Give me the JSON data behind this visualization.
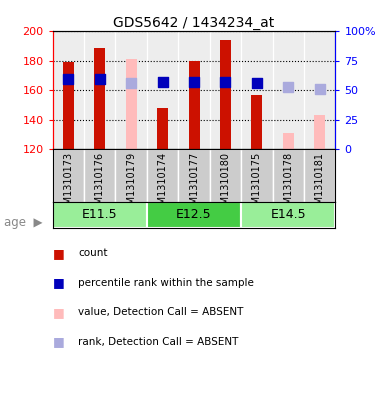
{
  "title": "GDS5642 / 1434234_at",
  "samples": [
    "GSM1310173",
    "GSM1310176",
    "GSM1310179",
    "GSM1310174",
    "GSM1310177",
    "GSM1310180",
    "GSM1310175",
    "GSM1310178",
    "GSM1310181"
  ],
  "age_groups": [
    {
      "label": "E11.5",
      "start": 0,
      "end": 3
    },
    {
      "label": "E12.5",
      "start": 3,
      "end": 6
    },
    {
      "label": "E14.5",
      "start": 6,
      "end": 9
    }
  ],
  "count_values": [
    179,
    189,
    null,
    148,
    180,
    194,
    157,
    null,
    null
  ],
  "rank_values": [
    168,
    168,
    null,
    166,
    166,
    166,
    165,
    null,
    null
  ],
  "absent_value": [
    null,
    null,
    181,
    null,
    null,
    null,
    null,
    131,
    143
  ],
  "absent_rank": [
    null,
    null,
    165,
    null,
    null,
    null,
    null,
    162,
    161
  ],
  "ylim_left": [
    120,
    200
  ],
  "ylim_right": [
    0,
    100
  ],
  "y_ticks_left": [
    120,
    140,
    160,
    180,
    200
  ],
  "y_ticks_right": [
    0,
    25,
    50,
    75,
    100
  ],
  "y_ticks_right_labels": [
    "0",
    "25",
    "50",
    "75",
    "100%"
  ],
  "bar_color_red": "#cc1100",
  "bar_color_pink": "#ffbbbb",
  "dot_color_blue": "#0000bb",
  "dot_color_lightblue": "#aaaadd",
  "sample_bg": "#cccccc",
  "age_bg_light": "#99ee99",
  "age_bg_dark": "#44cc44",
  "bar_width": 0.35,
  "dot_size": 50,
  "figsize": [
    3.9,
    3.93
  ],
  "dpi": 100
}
